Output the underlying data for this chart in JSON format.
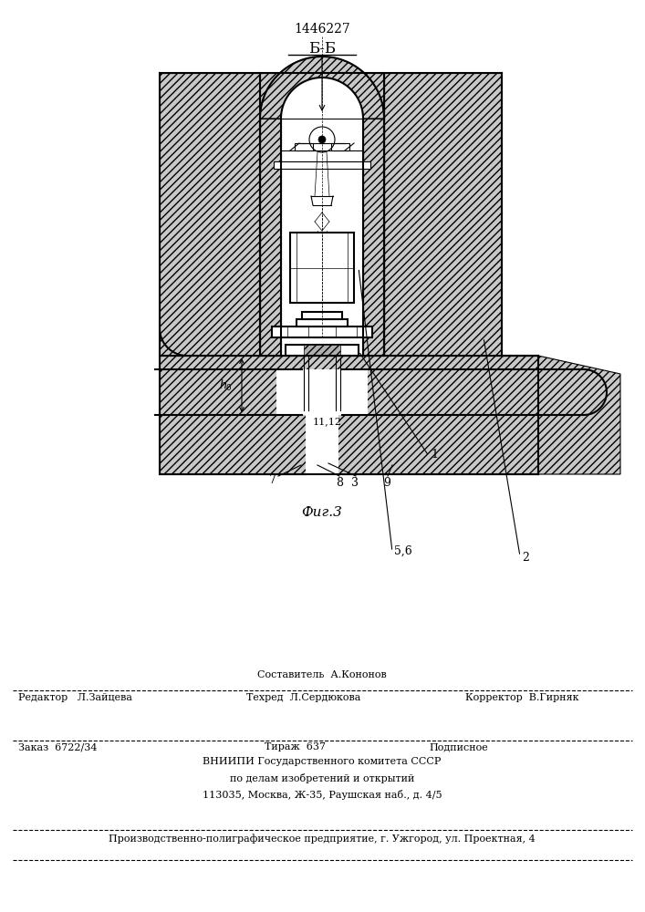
{
  "patent_number": "1446227",
  "section_label": "Б-Б",
  "fig_label": "Фиг.3",
  "bg_color": "#ffffff",
  "line_color": "#000000",
  "footer": {
    "compiler": "Составитель  А.Кононов",
    "editor": "Редактор   Л.Зайцева",
    "techred": "Техред  Л.Сердюкова",
    "corrector": "Корректор  В.Гирняк",
    "order": "Заказ  6722/34",
    "tirazh": "Тираж  637",
    "podpisnoe": "Подписное",
    "vniipи": "ВНИИПИ Государственного комитета СССР",
    "po_delam": "по делам изобретений и открытий",
    "address": "113035, Москва, Ж-35, Раушская наб., д. 4/5",
    "factory": "Производственно-полиграфическое предприятие, г. Ужгород, ул. Проектная, 4"
  }
}
